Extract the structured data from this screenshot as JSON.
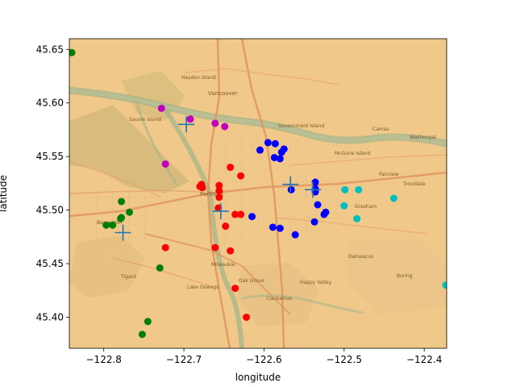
{
  "chart_data": {
    "type": "scatter",
    "title": "",
    "xlabel": "longitude",
    "ylabel": "latitude",
    "xlim": [
      -122.843,
      -122.372
    ],
    "ylim": [
      45.371,
      45.66
    ],
    "xticks": [
      -122.8,
      -122.7,
      -122.6,
      -122.5,
      -122.4
    ],
    "xtick_labels": [
      "−122.8",
      "−122.7",
      "−122.6",
      "−122.5",
      "−122.4"
    ],
    "yticks": [
      45.4,
      45.45,
      45.5,
      45.55,
      45.6,
      45.65
    ],
    "ytick_labels": [
      "45.40",
      "45.45",
      "45.50",
      "45.55",
      "45.60",
      "45.65"
    ],
    "grid": false,
    "legend": "none",
    "background": "street map of the Portland, Oregon area",
    "map_labels": [
      "Vancouver",
      "Portland",
      "Gresham",
      "Milwaukie",
      "Lake Oswego",
      "Oak Grove",
      "Clackamas",
      "Happy Valley",
      "Beaverton",
      "Tigard",
      "Camas",
      "Washougal",
      "Troutdale",
      "Fairview",
      "Boring",
      "Damascus",
      "Hayden Island",
      "Government Island",
      "McGuire Island",
      "Sauvie Island"
    ],
    "series": [
      {
        "color": "#008000",
        "marker": "circle",
        "points": [
          [
            -122.84,
            45.647
          ],
          [
            -122.778,
            45.508
          ],
          [
            -122.778,
            45.493
          ],
          [
            -122.779,
            45.492
          ],
          [
            -122.768,
            45.498
          ],
          [
            -122.789,
            45.486
          ],
          [
            -122.797,
            45.486
          ],
          [
            -122.73,
            45.446
          ],
          [
            -122.745,
            45.396
          ],
          [
            -122.752,
            45.384
          ]
        ]
      },
      {
        "color": "#bf00bf",
        "marker": "circle",
        "points": [
          [
            -122.728,
            45.595
          ],
          [
            -122.692,
            45.585
          ],
          [
            -122.661,
            45.581
          ],
          [
            -122.649,
            45.578
          ],
          [
            -122.723,
            45.543
          ]
        ]
      },
      {
        "color": "#ff0000",
        "marker": "circle",
        "points": [
          [
            -122.678,
            45.524
          ],
          [
            -122.677,
            45.521
          ],
          [
            -122.68,
            45.522
          ],
          [
            -122.656,
            45.523
          ],
          [
            -122.656,
            45.518
          ],
          [
            -122.656,
            45.512
          ],
          [
            -122.642,
            45.54
          ],
          [
            -122.629,
            45.532
          ],
          [
            -122.657,
            45.502
          ],
          [
            -122.636,
            45.496
          ],
          [
            -122.629,
            45.496
          ],
          [
            -122.648,
            45.485
          ],
          [
            -122.723,
            45.465
          ],
          [
            -122.661,
            45.465
          ],
          [
            -122.642,
            45.462
          ],
          [
            -122.636,
            45.427
          ],
          [
            -122.622,
            45.4
          ]
        ]
      },
      {
        "color": "#0000ff",
        "marker": "circle",
        "points": [
          [
            -122.595,
            45.563
          ],
          [
            -122.586,
            45.562
          ],
          [
            -122.575,
            45.557
          ],
          [
            -122.578,
            45.554
          ],
          [
            -122.605,
            45.556
          ],
          [
            -122.587,
            45.549
          ],
          [
            -122.58,
            45.548
          ],
          [
            -122.536,
            45.526
          ],
          [
            -122.536,
            45.52
          ],
          [
            -122.536,
            45.517
          ],
          [
            -122.566,
            45.519
          ],
          [
            -122.615,
            45.494
          ],
          [
            -122.589,
            45.484
          ],
          [
            -122.58,
            45.483
          ],
          [
            -122.533,
            45.505
          ],
          [
            -122.523,
            45.498
          ],
          [
            -122.525,
            45.496
          ],
          [
            -122.537,
            45.489
          ],
          [
            -122.561,
            45.477
          ]
        ]
      },
      {
        "color": "#00bfbf",
        "marker": "circle",
        "points": [
          [
            -122.499,
            45.519
          ],
          [
            -122.482,
            45.519
          ],
          [
            -122.438,
            45.511
          ],
          [
            -122.5,
            45.504
          ],
          [
            -122.484,
            45.492
          ],
          [
            -122.373,
            45.43
          ]
        ]
      },
      {
        "color": "#1f77b4",
        "marker": "plus",
        "name": "",
        "points": [
          [
            -122.697,
            45.58
          ],
          [
            -122.654,
            45.499
          ],
          [
            -122.567,
            45.524
          ],
          [
            -122.539,
            45.519
          ],
          [
            -122.776,
            45.479
          ]
        ]
      }
    ]
  }
}
